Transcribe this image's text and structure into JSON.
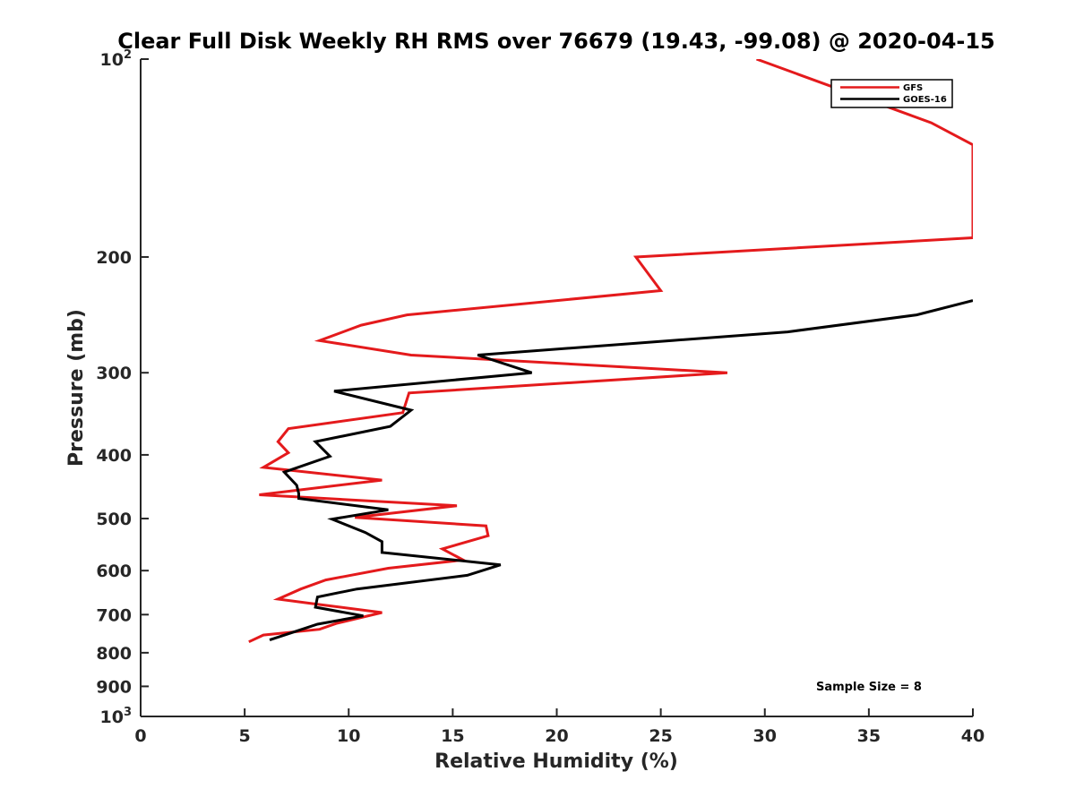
{
  "chart_data": {
    "type": "line",
    "title": "Clear Full Disk Weekly RH RMS over 76679 (19.43, -99.08) @ 2020-04-15",
    "xlabel": "Relative Humidity (%)",
    "ylabel": "Pressure (mb)",
    "xlim": [
      0,
      40
    ],
    "ylim": [
      100,
      1000
    ],
    "yscale": "log",
    "y_reversed": true,
    "x_ticks": [
      0,
      5,
      10,
      15,
      20,
      25,
      30,
      35,
      40
    ],
    "y_ticks": [
      {
        "value": 100,
        "base": "10",
        "exp": "2"
      },
      {
        "value": 200,
        "label": "200"
      },
      {
        "value": 300,
        "label": "300"
      },
      {
        "value": 400,
        "label": "400"
      },
      {
        "value": 500,
        "label": "500"
      },
      {
        "value": 600,
        "label": "600"
      },
      {
        "value": 700,
        "label": "700"
      },
      {
        "value": 800,
        "label": "800"
      },
      {
        "value": 900,
        "label": "900"
      },
      {
        "value": 1000,
        "base": "10",
        "exp": "3"
      }
    ],
    "grid": false,
    "legend_position": "top-right",
    "series": [
      {
        "name": "GFS",
        "color": "#e41a1c",
        "points": [
          [
            29.6,
            100
          ],
          [
            38.0,
            125
          ],
          [
            40.0,
            135
          ],
          [
            40.0,
            187
          ],
          [
            23.8,
            200
          ],
          [
            25.0,
            225
          ],
          [
            12.8,
            245
          ],
          [
            10.6,
            254
          ],
          [
            8.6,
            268
          ],
          [
            13.0,
            282
          ],
          [
            28.2,
            300
          ],
          [
            12.9,
            322
          ],
          [
            12.6,
            345
          ],
          [
            7.1,
            365
          ],
          [
            6.6,
            382
          ],
          [
            7.1,
            397
          ],
          [
            5.9,
            418
          ],
          [
            11.6,
            437
          ],
          [
            5.7,
            460
          ],
          [
            15.2,
            478
          ],
          [
            10.3,
            498
          ],
          [
            16.6,
            513
          ],
          [
            16.7,
            531
          ],
          [
            14.5,
            556
          ],
          [
            15.5,
            578
          ],
          [
            11.9,
            595
          ],
          [
            8.9,
            620
          ],
          [
            7.7,
            640
          ],
          [
            6.6,
            663
          ],
          [
            8.5,
            675
          ],
          [
            11.6,
            695
          ],
          [
            9.4,
            722
          ],
          [
            8.6,
            737
          ],
          [
            5.9,
            752
          ],
          [
            5.2,
            770
          ]
        ]
      },
      {
        "name": "GOES-16",
        "color": "#000000",
        "points": [
          [
            40.0,
            233
          ],
          [
            37.3,
            245
          ],
          [
            31.1,
            260
          ],
          [
            16.2,
            282
          ],
          [
            18.8,
            300
          ],
          [
            9.3,
            320
          ],
          [
            13.0,
            342
          ],
          [
            12.0,
            362
          ],
          [
            8.4,
            382
          ],
          [
            9.1,
            402
          ],
          [
            6.9,
            425
          ],
          [
            7.5,
            445
          ],
          [
            7.6,
            458
          ],
          [
            7.6,
            466
          ],
          [
            11.9,
            485
          ],
          [
            9.2,
            501
          ],
          [
            10.8,
            525
          ],
          [
            11.6,
            542
          ],
          [
            11.6,
            563
          ],
          [
            17.3,
            588
          ],
          [
            15.7,
            610
          ],
          [
            10.4,
            640
          ],
          [
            8.5,
            658
          ],
          [
            8.4,
            682
          ],
          [
            10.7,
            703
          ],
          [
            8.5,
            724
          ],
          [
            7.3,
            745
          ],
          [
            6.2,
            765
          ]
        ]
      }
    ],
    "annotations": [
      {
        "text": "Sample Size = 8"
      }
    ]
  }
}
